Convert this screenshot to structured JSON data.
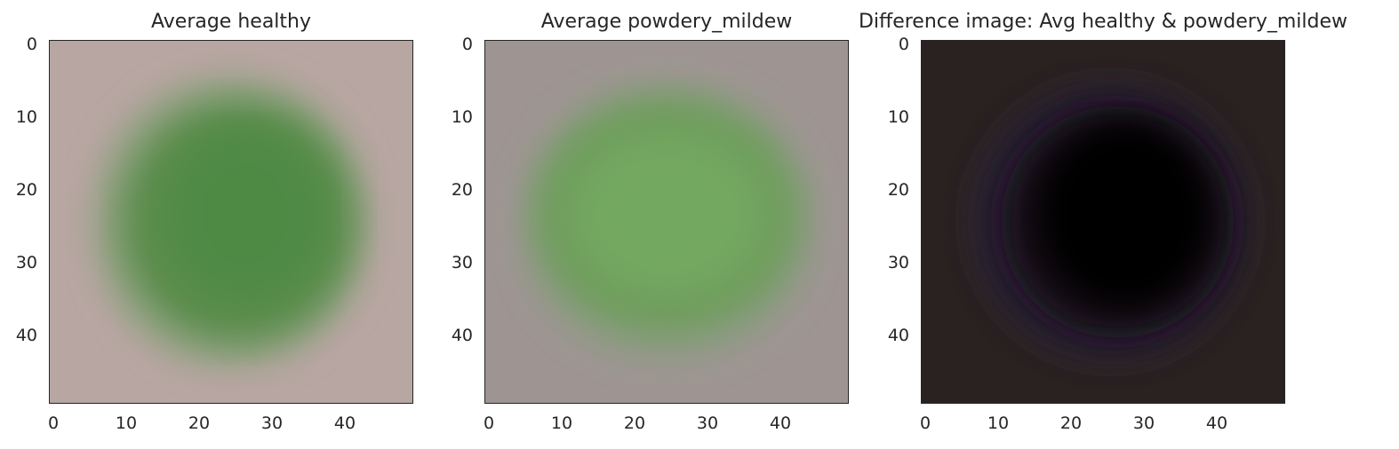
{
  "chart_data": [
    {
      "type": "image",
      "title": "Average healthy",
      "xlim": [
        0,
        49
      ],
      "ylim": [
        49,
        0
      ],
      "x_ticks": [
        "0",
        "10",
        "20",
        "30",
        "40"
      ],
      "y_ticks": [
        "0",
        "10",
        "20",
        "30",
        "40"
      ],
      "grid": false,
      "colors": {
        "background": "#b8a6a2",
        "leaf_outer": "#8da07e",
        "leaf_inner": "#5a8c4c",
        "leaf_core": "#4f8a44"
      }
    },
    {
      "type": "image",
      "title": "Average powdery_mildew",
      "xlim": [
        0,
        49
      ],
      "ylim": [
        49,
        0
      ],
      "x_ticks": [
        "0",
        "10",
        "20",
        "30",
        "40"
      ],
      "y_ticks": [
        "0",
        "10",
        "20",
        "30",
        "40"
      ],
      "grid": false,
      "colors": {
        "background": "#9e9592",
        "leaf_outer": "#8a9b80",
        "leaf_inner": "#6e9d5c",
        "leaf_core": "#73a860"
      }
    },
    {
      "type": "image",
      "title": "Difference image: Avg healthy & powdery_mildew",
      "xlim": [
        0,
        49
      ],
      "ylim": [
        49,
        0
      ],
      "x_ticks": [
        "0",
        "10",
        "20",
        "30",
        "40"
      ],
      "y_ticks": [
        "0",
        "10",
        "20",
        "30",
        "40"
      ],
      "grid": false,
      "colors": {
        "background": "#2a2220",
        "ring": "#2b2238",
        "core": "#050306"
      }
    }
  ]
}
